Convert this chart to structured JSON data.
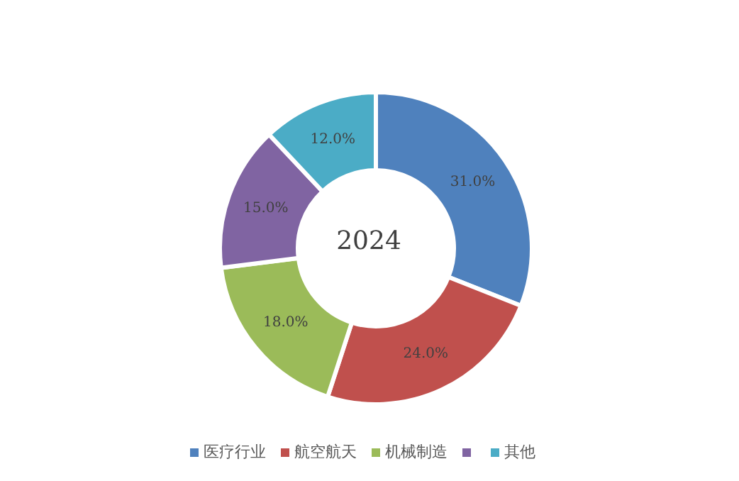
{
  "chart_data": {
    "type": "donut",
    "title": "2024",
    "categories": [
      "医疗行业",
      "航空航天",
      "机械制造",
      null,
      "其他"
    ],
    "values": [
      31,
      24,
      18,
      15,
      12
    ],
    "value_labels": [
      "31.0%",
      "24.0%",
      "18.0%",
      "15.0%",
      "12.0%"
    ],
    "colors": [
      "#4f81bd",
      "#c0504d",
      "#9bbb59",
      "#8064a2",
      "#4bacc6"
    ],
    "legend": "bottom"
  }
}
